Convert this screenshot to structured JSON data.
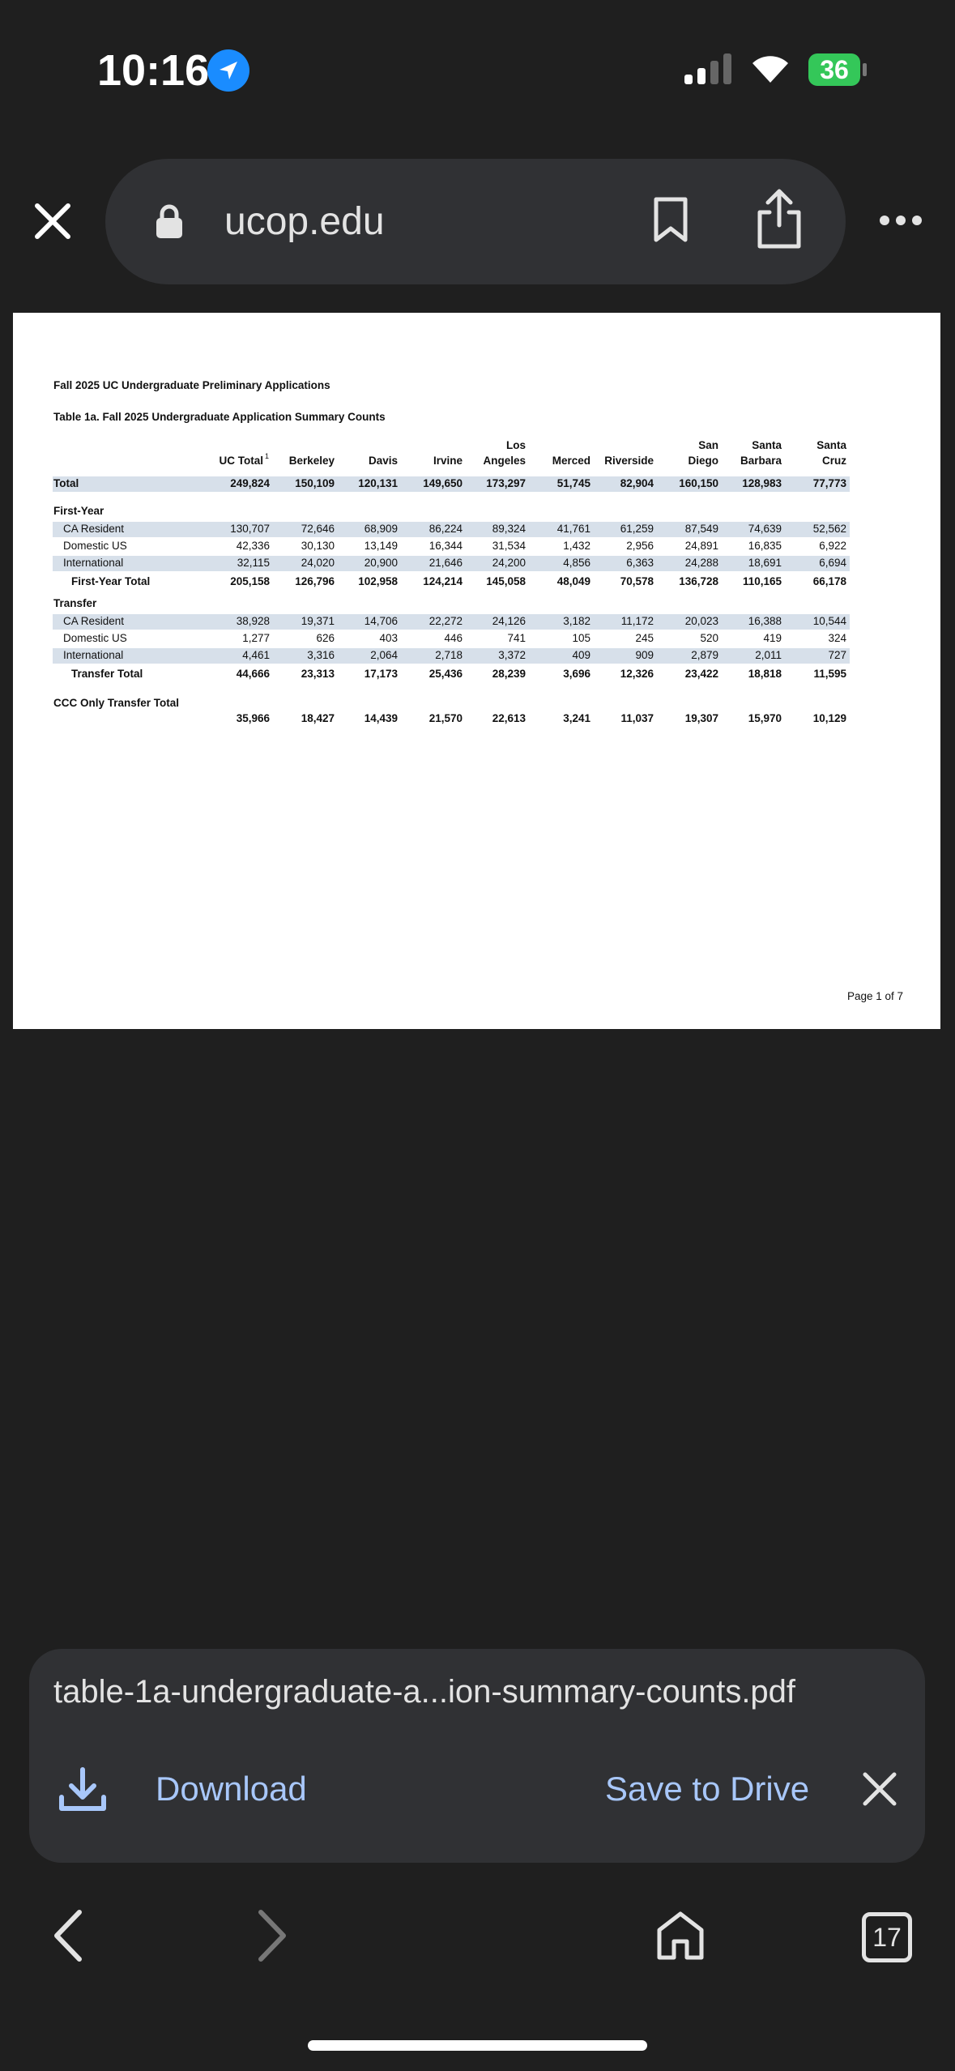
{
  "status_bar": {
    "time": "10:16",
    "battery": "36"
  },
  "browser": {
    "url": "ucop.edu",
    "tab_count": "17"
  },
  "document": {
    "heading": "Fall 2025 UC Undergraduate Preliminary Applications",
    "table_title": "Table 1a. Fall 2025 Undergraduate Application Summary Counts",
    "columns": [
      {
        "lines": [
          "UC Total"
        ],
        "note": "1"
      },
      {
        "lines": [
          "Berkeley"
        ]
      },
      {
        "lines": [
          "Davis"
        ]
      },
      {
        "lines": [
          "Irvine"
        ]
      },
      {
        "lines": [
          "Los",
          "Angeles"
        ]
      },
      {
        "lines": [
          "Merced"
        ]
      },
      {
        "lines": [
          "Riverside"
        ]
      },
      {
        "lines": [
          "San",
          "Diego"
        ]
      },
      {
        "lines": [
          "Santa",
          "Barbara"
        ]
      },
      {
        "lines": [
          "Santa",
          "Cruz"
        ]
      }
    ],
    "total": {
      "label": "Total",
      "values": [
        "249,824",
        "150,109",
        "120,131",
        "149,650",
        "173,297",
        "51,745",
        "82,904",
        "160,150",
        "128,983",
        "77,773"
      ]
    },
    "sections": [
      {
        "name": "First-Year",
        "rows": [
          {
            "label": "CA Resident",
            "values": [
              "130,707",
              "72,646",
              "68,909",
              "86,224",
              "89,324",
              "41,761",
              "61,259",
              "87,549",
              "74,639",
              "52,562"
            ]
          },
          {
            "label": "Domestic US",
            "values": [
              "42,336",
              "30,130",
              "13,149",
              "16,344",
              "31,534",
              "1,432",
              "2,956",
              "24,891",
              "16,835",
              "6,922"
            ]
          },
          {
            "label": "International",
            "values": [
              "32,115",
              "24,020",
              "20,900",
              "21,646",
              "24,200",
              "4,856",
              "6,363",
              "24,288",
              "18,691",
              "6,694"
            ]
          }
        ],
        "total": {
          "label": "First-Year Total",
          "values": [
            "205,158",
            "126,796",
            "102,958",
            "124,214",
            "145,058",
            "48,049",
            "70,578",
            "136,728",
            "110,165",
            "66,178"
          ]
        }
      },
      {
        "name": "Transfer",
        "rows": [
          {
            "label": "CA Resident",
            "values": [
              "38,928",
              "19,371",
              "14,706",
              "22,272",
              "24,126",
              "3,182",
              "11,172",
              "20,023",
              "16,388",
              "10,544"
            ]
          },
          {
            "label": "Domestic US",
            "values": [
              "1,277",
              "626",
              "403",
              "446",
              "741",
              "105",
              "245",
              "520",
              "419",
              "324"
            ]
          },
          {
            "label": "International",
            "values": [
              "4,461",
              "3,316",
              "2,064",
              "2,718",
              "3,372",
              "409",
              "909",
              "2,879",
              "2,011",
              "727"
            ]
          }
        ],
        "total": {
          "label": "Transfer Total",
          "values": [
            "44,666",
            "23,313",
            "17,173",
            "25,436",
            "28,239",
            "3,696",
            "12,326",
            "23,422",
            "18,818",
            "11,595"
          ]
        }
      }
    ],
    "ccc": {
      "label": "CCC Only Transfer Total",
      "values": [
        "35,966",
        "18,427",
        "14,439",
        "21,570",
        "22,613",
        "3,241",
        "11,037",
        "19,307",
        "15,970",
        "10,129"
      ]
    },
    "page_label": "Page 1 of 7"
  },
  "download_bar": {
    "file_name": "table-1a-undergraduate-a...ion-summary-counts.pdf",
    "download": "Download",
    "save": "Save to Drive"
  }
}
